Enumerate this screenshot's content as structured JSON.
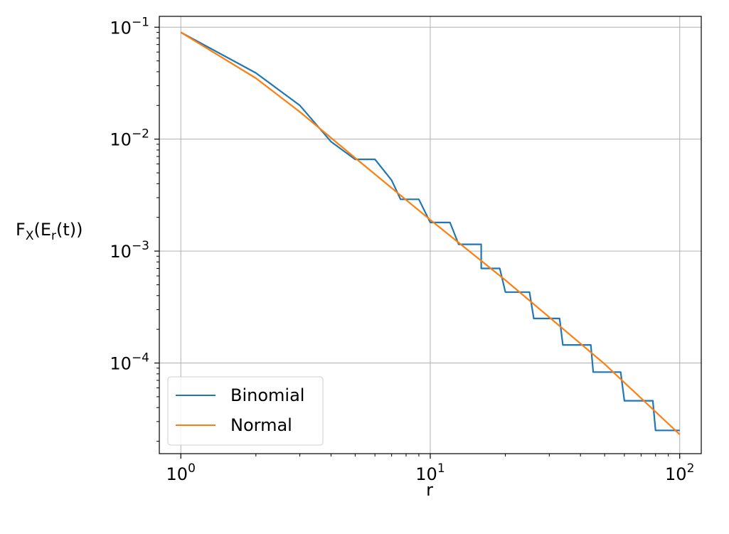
{
  "chart_data": {
    "type": "line",
    "xscale": "log",
    "yscale": "log",
    "xlim": [
      0.82,
      122
    ],
    "ylim": [
      1.55e-05,
      0.125
    ],
    "grid": true,
    "legend_position": "lower-left",
    "xlabel": "r",
    "ylabel": {
      "base": "F",
      "sub1": "X",
      "mid": "(E",
      "sub2": "r",
      "end": "(t))"
    },
    "xticks": [
      {
        "value": 1,
        "base": "10",
        "exp": "0"
      },
      {
        "value": 10,
        "base": "10",
        "exp": "1"
      },
      {
        "value": 100,
        "base": "10",
        "exp": "2"
      }
    ],
    "yticks": [
      {
        "value": 0.1,
        "base": "10",
        "exp": "−1"
      },
      {
        "value": 0.01,
        "base": "10",
        "exp": "−2"
      },
      {
        "value": 0.001,
        "base": "10",
        "exp": "−3"
      },
      {
        "value": 0.0001,
        "base": "10",
        "exp": "−4"
      }
    ],
    "series": [
      {
        "name": "Binomial",
        "color": "#1f77b4",
        "points": [
          [
            1,
            0.09
          ],
          [
            2,
            0.039
          ],
          [
            3,
            0.02
          ],
          [
            4,
            0.0095
          ],
          [
            5,
            0.0066
          ],
          [
            6,
            0.0066
          ],
          [
            7,
            0.0043
          ],
          [
            7.6,
            0.0029
          ],
          [
            8,
            0.0029
          ],
          [
            9,
            0.0029
          ],
          [
            10,
            0.0018
          ],
          [
            11,
            0.0018
          ],
          [
            12,
            0.0018
          ],
          [
            13,
            0.00115
          ],
          [
            16,
            0.00115
          ],
          [
            16,
            0.0007
          ],
          [
            19,
            0.0007
          ],
          [
            20,
            0.00043
          ],
          [
            25,
            0.00043
          ],
          [
            26,
            0.00025
          ],
          [
            33,
            0.00025
          ],
          [
            34,
            0.000145
          ],
          [
            44,
            0.000145
          ],
          [
            45,
            8.3e-05
          ],
          [
            58,
            8.3e-05
          ],
          [
            60,
            4.6e-05
          ],
          [
            78,
            4.6e-05
          ],
          [
            80,
            2.5e-05
          ],
          [
            100,
            2.5e-05
          ]
        ]
      },
      {
        "name": "Normal",
        "color": "#ff7f0e",
        "points": [
          [
            1,
            0.09
          ],
          [
            2,
            0.035
          ],
          [
            3,
            0.0175
          ],
          [
            5,
            0.0068
          ],
          [
            10,
            0.0019
          ],
          [
            20,
            0.00055
          ],
          [
            50,
            9.8e-05
          ],
          [
            100,
            2.3e-05
          ]
        ]
      }
    ]
  }
}
